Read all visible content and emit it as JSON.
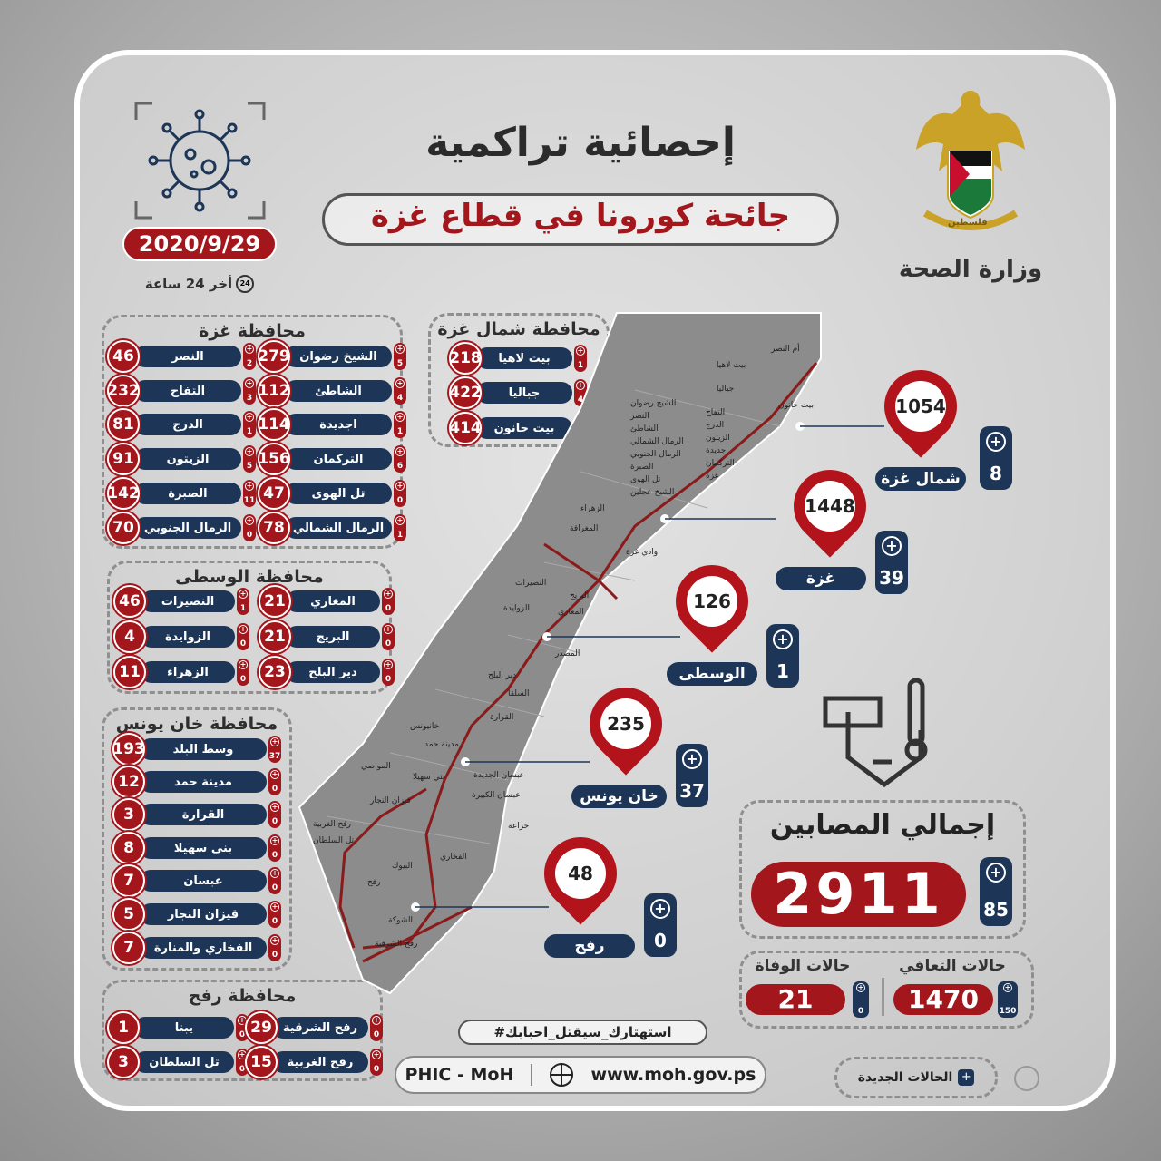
{
  "header": {
    "title": "إحصائية تراكمية",
    "subtitle": "جائحة كورونا في قطاع غزة",
    "date": "2020/9/29",
    "last24": "أخر 24 ساعة",
    "clock_label": "24",
    "ministry": "وزارة الصحة",
    "emblem_text": "فلسطين"
  },
  "colors": {
    "red": "#a3161c",
    "navy": "#1d3557"
  },
  "icons": [
    "virus-icon",
    "clock-24-icon",
    "eagle-emblem-icon",
    "map-pin-icon",
    "plus-icon",
    "globe-icon",
    "location-icon"
  ],
  "gaza": {
    "title": "محافظة غزة",
    "items": [
      {
        "name": "الشيخ رضوان",
        "total": "279",
        "new": "5"
      },
      {
        "name": "النصر",
        "total": "46",
        "new": "2"
      },
      {
        "name": "الشاطئ",
        "total": "112",
        "new": "4"
      },
      {
        "name": "التفاح",
        "total": "232",
        "new": "3"
      },
      {
        "name": "اجديدة",
        "total": "114",
        "new": "1"
      },
      {
        "name": "الدرج",
        "total": "81",
        "new": "1"
      },
      {
        "name": "التركمان",
        "total": "156",
        "new": "6"
      },
      {
        "name": "الزيتون",
        "total": "91",
        "new": "5"
      },
      {
        "name": "تل الهوى",
        "total": "47",
        "new": "0"
      },
      {
        "name": "الصبرة",
        "total": "142",
        "new": "11"
      },
      {
        "name": "الرمال الشمالي",
        "total": "78",
        "new": "1"
      },
      {
        "name": "الرمال الجنوبي",
        "total": "70",
        "new": "0"
      }
    ]
  },
  "north": {
    "title": "محافظة شمال غزة",
    "items": [
      {
        "name": "بيت لاهيا",
        "total": "218",
        "new": "1"
      },
      {
        "name": "جباليا",
        "total": "422",
        "new": "4"
      },
      {
        "name": "بيت حانون",
        "total": "414",
        "new": "3"
      }
    ]
  },
  "middle": {
    "title": "محافظة الوسطى",
    "items": [
      {
        "name": "المغازي",
        "total": "21",
        "new": "0"
      },
      {
        "name": "النصيرات",
        "total": "46",
        "new": "1"
      },
      {
        "name": "البريج",
        "total": "21",
        "new": "0"
      },
      {
        "name": "الزوايدة",
        "total": "4",
        "new": "0"
      },
      {
        "name": "دير البلح",
        "total": "23",
        "new": "0"
      },
      {
        "name": "الزهراء",
        "total": "11",
        "new": "0"
      }
    ]
  },
  "khanyounis": {
    "title": "محافظة خان يونس",
    "items": [
      {
        "name": "وسط البلد",
        "total": "193",
        "new": "37"
      },
      {
        "name": "مدينة حمد",
        "total": "12",
        "new": "0"
      },
      {
        "name": "القرارة",
        "total": "3",
        "new": "0"
      },
      {
        "name": "بني سهيلا",
        "total": "8",
        "new": "0"
      },
      {
        "name": "عبسان",
        "total": "7",
        "new": "0"
      },
      {
        "name": "قيزان النجار",
        "total": "5",
        "new": "0"
      },
      {
        "name": "الفخاري والمنارة",
        "total": "7",
        "new": "0"
      }
    ]
  },
  "rafah": {
    "title": "محافظة رفح",
    "items": [
      {
        "name": "رفح الشرقية",
        "total": "29",
        "new": "0"
      },
      {
        "name": "يبنا",
        "total": "1",
        "new": "0"
      },
      {
        "name": "رفح الغربية",
        "total": "15",
        "new": "0"
      },
      {
        "name": "تل السلطان",
        "total": "3",
        "new": "0"
      }
    ]
  },
  "pins": [
    {
      "name": "شمال غزة",
      "total": "1054",
      "new": "8"
    },
    {
      "name": "غزة",
      "total": "1448",
      "new": "39"
    },
    {
      "name": "الوسطى",
      "total": "126",
      "new": "1"
    },
    {
      "name": "خان يونس",
      "total": "235",
      "new": "37"
    },
    {
      "name": "رفح",
      "total": "48",
      "new": "0"
    }
  ],
  "map_labels": [
    "أم النصر",
    "بيت لاهيا",
    "بيت حانون",
    "جباليا",
    "الشيخ رضوان",
    "النصر",
    "الشاطئ",
    "الرمال الشمالي",
    "التفاح",
    "الدرج",
    "الرمال الجنوبي",
    "الصبرة",
    "تل الهوى",
    "الشيخ عجلين",
    "الزيتون",
    "اجديدة",
    "التركمان",
    "غزة",
    "الزهراء",
    "المغراقة",
    "وادي غزة",
    "النصيرات",
    "البريج",
    "الزوايدة",
    "المغازي",
    "المصدر",
    "دير البلح",
    "السلقا",
    "القرارة",
    "مدينة حمد",
    "خانيونس",
    "المواصي",
    "عبسان الجديدة",
    "بني سهيلا",
    "عبسان الكبيرة",
    "خزاعة",
    "قيزان النجار",
    "رفح الغربية",
    "تل السلطان",
    "رفح",
    "البيوك",
    "الفخاري",
    "الشوكة",
    "رفح الشرقية"
  ],
  "totals": {
    "title": "إجمالي المصابين",
    "total": "2911",
    "new": "85",
    "recovered_label": "حالات التعافي",
    "recovered": "1470",
    "recovered_new": "150",
    "deaths_label": "حالات الوفاة",
    "deaths": "21",
    "deaths_new": "0"
  },
  "footer": {
    "hashtag": "#استهتارك_سيقتل_احبابك",
    "org": "PHIC - MoH",
    "website": "www.moh.gov.ps",
    "legend": "الحالات الجديدة"
  }
}
